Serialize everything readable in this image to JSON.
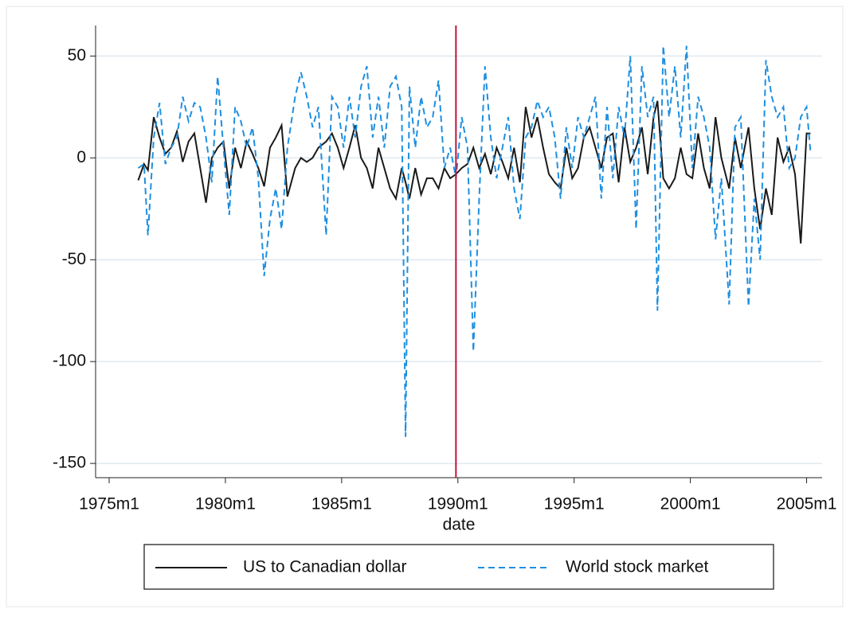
{
  "chart_data": {
    "type": "line",
    "x_label": "date",
    "x": [
      "1976m4",
      "1976m7",
      "1976m9",
      "1976m12",
      "1977m3",
      "1977m6",
      "1977m9",
      "1977m12",
      "1978m3",
      "1978m6",
      "1978m9",
      "1978m12",
      "1979m3",
      "1979m6",
      "1979m9",
      "1979m12",
      "1980m3",
      "1980m6",
      "1980m9",
      "1980m12",
      "1981m3",
      "1981m6",
      "1981m9",
      "1981m12",
      "1982m3",
      "1982m6",
      "1982m9",
      "1983m1",
      "1983m4",
      "1983m7",
      "1983m10",
      "1984m1",
      "1984m5",
      "1984m8",
      "1984m11",
      "1985m2",
      "1985m5",
      "1985m8",
      "1985m11",
      "1986m2",
      "1986m5",
      "1986m8",
      "1986m11",
      "1987m2",
      "1987m5",
      "1987m8",
      "1987m10",
      "1987m12",
      "1988m3",
      "1988m6",
      "1988m9",
      "1988m12",
      "1989m3",
      "1989m6",
      "1989m9",
      "1989m12",
      "1990m3",
      "1990m6",
      "1990m9",
      "1990m12",
      "1991m3",
      "1991m6",
      "1991m9",
      "1991m12",
      "1992m3",
      "1992m6",
      "1992m9",
      "1992m12",
      "1993m3",
      "1993m6",
      "1993m9",
      "1993m12",
      "1994m3",
      "1994m6",
      "1994m9",
      "1994m12",
      "1995m3",
      "1995m6",
      "1995m9",
      "1995m12",
      "1996m3",
      "1996m6",
      "1996m9",
      "1996m12",
      "1997m3",
      "1997m6",
      "1997m9",
      "1997m12",
      "1998m3",
      "1998m6",
      "1998m8",
      "1998m11",
      "1999m2",
      "1999m5",
      "1999m8",
      "1999m11",
      "2000m2",
      "2000m5",
      "2000m8",
      "2000m11",
      "2001m2",
      "2001m5",
      "2001m9",
      "2001m12",
      "2002m3",
      "2002m7",
      "2002m10",
      "2003m1",
      "2003m4",
      "2003m7",
      "2003m10",
      "2004m1",
      "2004m4",
      "2004m7",
      "2004m10",
      "2005m1",
      "2005m3"
    ],
    "series": [
      {
        "name": "US to Canadian dollar",
        "color": "#1a1a1a",
        "dash": "solid",
        "values": [
          -11,
          -3,
          -6,
          20,
          10,
          2,
          5,
          13,
          -2,
          8,
          12,
          -5,
          -22,
          0,
          5,
          8,
          -15,
          5,
          -5,
          8,
          2,
          -5,
          -14,
          5,
          10,
          16,
          -19,
          -5,
          0,
          -2,
          0,
          5,
          8,
          12,
          5,
          -5,
          5,
          16,
          0,
          -5,
          -15,
          5,
          -5,
          -15,
          -20,
          -5,
          -12,
          -20,
          -5,
          -18,
          -10,
          -10,
          -15,
          -5,
          -10,
          -8,
          -5,
          -3,
          5,
          -5,
          2,
          -8,
          5,
          -2,
          -10,
          5,
          -12,
          25,
          10,
          20,
          5,
          -8,
          -12,
          -15,
          5,
          -10,
          -5,
          10,
          15,
          5,
          -5,
          10,
          12,
          -12,
          15,
          -2,
          5,
          15,
          -8,
          20,
          28,
          -10,
          -15,
          -10,
          5,
          -8,
          -10,
          12,
          -5,
          -15,
          20,
          0,
          -15,
          10,
          -5,
          15,
          -15,
          -35,
          -15,
          -28,
          10,
          -2,
          5,
          -8,
          -42,
          12,
          12
        ]
      },
      {
        "name": "World stock market",
        "color": "#1e8fe0",
        "dash": "dashed",
        "values": [
          -5,
          -3,
          -38,
          10,
          27,
          -3,
          5,
          10,
          30,
          18,
          27,
          25,
          10,
          -12,
          40,
          5,
          -28,
          25,
          18,
          5,
          15,
          -10,
          -58,
          -30,
          -15,
          -35,
          5,
          30,
          42,
          30,
          15,
          25,
          -38,
          30,
          25,
          5,
          30,
          10,
          35,
          45,
          10,
          30,
          5,
          35,
          40,
          25,
          -137,
          35,
          5,
          30,
          15,
          20,
          38,
          -5,
          5,
          -10,
          20,
          5,
          -95,
          -20,
          45,
          10,
          -10,
          5,
          20,
          -15,
          -30,
          10,
          15,
          28,
          20,
          25,
          10,
          -20,
          15,
          -5,
          20,
          10,
          20,
          30,
          -20,
          25,
          -10,
          25,
          10,
          50,
          -35,
          45,
          20,
          30,
          -75,
          55,
          20,
          45,
          10,
          55,
          -5,
          30,
          20,
          5,
          -40,
          -10,
          -72,
          15,
          20,
          -73,
          -20,
          -50,
          48,
          30,
          20,
          25,
          -5,
          0,
          20,
          25,
          3
        ]
      }
    ],
    "xlim": [
      "1974m6",
      "2005m9"
    ],
    "xticks": [
      "1975m1",
      "1980m1",
      "1985m1",
      "1990m1",
      "1995m1",
      "2000m1",
      "2005m1"
    ],
    "ylim": [
      -157,
      65
    ],
    "yticks": [
      -150,
      -100,
      -50,
      0,
      50
    ],
    "grid": true,
    "vline": "1989m12",
    "vline_color": "#c0143c",
    "legend": "bottom"
  }
}
